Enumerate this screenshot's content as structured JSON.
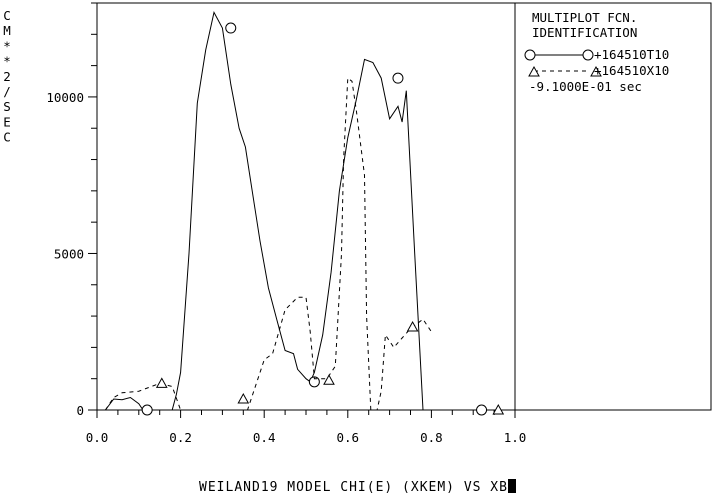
{
  "caption": "WEILAND19 MODEL CHI(E) (XKEM) VS XB",
  "chart_data": {
    "type": "line",
    "ylabel": "CM**2/SEC",
    "xlim": [
      0,
      1
    ],
    "ylim": [
      0,
      13000
    ],
    "x_ticks": [
      "0.0",
      "0.2",
      "0.4",
      "0.6",
      "0.8",
      "1.0"
    ],
    "y_ticks": [
      "0",
      "5000",
      "10000"
    ],
    "legend": {
      "title_line1": "MULTIPLOT FCN.",
      "title_line2": "IDENTIFICATION",
      "entries": [
        "+164510T10",
        "+164510X10"
      ],
      "time": "-9.1000E-01 sec"
    },
    "series": [
      {
        "name": "+164510T10",
        "style": "solid",
        "marker": "circle",
        "x": [
          0.02,
          0.04,
          0.06,
          0.08,
          0.09,
          0.1,
          0.11,
          0.12,
          0.13,
          0.14,
          0.15,
          0.16,
          0.17,
          0.18,
          0.19,
          0.2,
          0.22,
          0.24,
          0.26,
          0.28,
          0.3,
          0.32,
          0.34,
          0.355,
          0.37,
          0.39,
          0.41,
          0.43,
          0.45,
          0.47,
          0.48,
          0.5,
          0.51,
          0.52,
          0.54,
          0.56,
          0.58,
          0.6,
          0.62,
          0.64,
          0.66,
          0.68,
          0.7,
          0.72,
          0.73,
          0.74,
          0.76,
          0.78,
          0.795,
          0.8,
          0.81,
          0.815
        ],
        "y": [
          0,
          350,
          330,
          400,
          300,
          200,
          0,
          0,
          0,
          0,
          0,
          0,
          0,
          0,
          500,
          1200,
          5000,
          9800,
          11500,
          12700,
          12200,
          10400,
          9000,
          8400,
          7100,
          5400,
          3900,
          2900,
          1900,
          1800,
          1300,
          1000,
          900,
          1200,
          2400,
          4400,
          7000,
          8700,
          9900,
          11200,
          11100,
          10600,
          9300,
          9700,
          9200,
          10200,
          5000,
          0,
          0,
          0,
          0,
          0
        ],
        "markers": [
          [
            0.12,
            0
          ],
          [
            0.32,
            12200
          ],
          [
            0.52,
            900
          ],
          [
            0.72,
            10600
          ],
          [
            0.92,
            0
          ]
        ]
      },
      {
        "name": "+164510X10",
        "style": "dashed",
        "marker": "triangle",
        "x": [
          0.02,
          0.04,
          0.06,
          0.1,
          0.15,
          0.18,
          0.2,
          0.24,
          0.27,
          0.3,
          0.33,
          0.36,
          0.4,
          0.42,
          0.45,
          0.48,
          0.5,
          0.51,
          0.52,
          0.55,
          0.57,
          0.585,
          0.59,
          0.6,
          0.61,
          0.62,
          0.64,
          0.645,
          0.655,
          0.67,
          0.68,
          0.69,
          0.71,
          0.73,
          0.75,
          0.77,
          0.78,
          0.79,
          0.8
        ],
        "y": [
          0,
          400,
          550,
          600,
          850,
          750,
          0,
          0,
          0,
          0,
          0,
          0,
          1600,
          1800,
          3200,
          3600,
          3600,
          2500,
          1000,
          1000,
          1400,
          5000,
          8000,
          10600,
          10500,
          9600,
          7500,
          3000,
          0,
          0,
          600,
          2400,
          2000,
          2300,
          2600,
          2800,
          2900,
          2700,
          2500
        ],
        "markers": [
          [
            0.155,
            850
          ],
          [
            0.35,
            350
          ],
          [
            0.555,
            950
          ],
          [
            0.755,
            2650
          ],
          [
            0.96,
            0
          ]
        ]
      }
    ]
  }
}
